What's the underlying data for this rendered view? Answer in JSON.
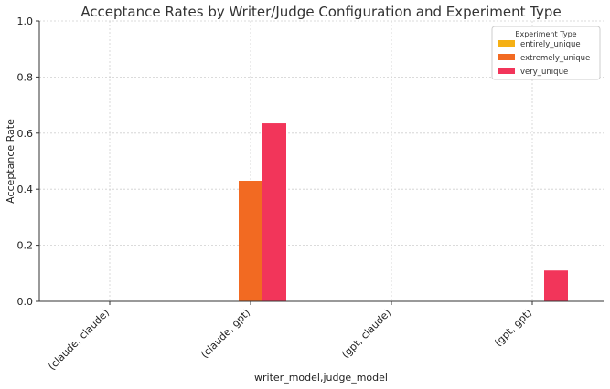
{
  "chart_data": {
    "type": "bar",
    "title": "Acceptance Rates by Writer/Judge Configuration and Experiment Type",
    "xlabel": "writer_model,judge_model",
    "ylabel": "Acceptance Rate",
    "ylim": [
      0,
      1.0
    ],
    "yticks": [
      "0.0",
      "0.2",
      "0.4",
      "0.6",
      "0.8",
      "1.0"
    ],
    "categories": [
      "(claude, claude)",
      "(claude, gpt)",
      "(gpt, claude)",
      "(gpt, gpt)"
    ],
    "series": [
      {
        "name": "entirely_unique",
        "color": "#f5b014",
        "values": [
          0,
          0,
          0,
          0
        ]
      },
      {
        "name": "extremely_unique",
        "color": "#f26a22",
        "values": [
          0,
          0.43,
          0,
          0
        ]
      },
      {
        "name": "very_unique",
        "color": "#f2355a",
        "values": [
          0,
          0.635,
          0,
          0.11
        ]
      }
    ],
    "legend": {
      "title": "Experiment Type",
      "position": "top-right"
    },
    "grid": true
  }
}
